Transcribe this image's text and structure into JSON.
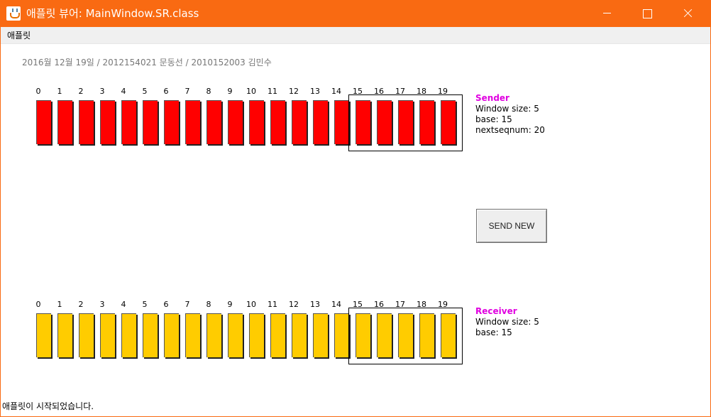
{
  "window": {
    "title": "애플릿 뷰어: MainWindow.SR.class"
  },
  "menu": {
    "items": [
      "애플릿"
    ]
  },
  "info_line": "2016월 12월 19일 / 2012154021 문동선 / 2010152003 김민수",
  "sender": {
    "title": "Sender",
    "window_size": "Window size: 5",
    "base": "base: 15",
    "nextseqnum": "nextseqnum: 20",
    "packets": [
      "0",
      "1",
      "2",
      "3",
      "4",
      "5",
      "6",
      "7",
      "8",
      "9",
      "10",
      "11",
      "12",
      "13",
      "14",
      "15",
      "16",
      "17",
      "18",
      "19"
    ],
    "state_color": "#ff0000"
  },
  "receiver": {
    "title": "Receiver",
    "window_size": "Window size: 5",
    "base": "base: 15",
    "packets": [
      "0",
      "1",
      "2",
      "3",
      "4",
      "5",
      "6",
      "7",
      "8",
      "9",
      "10",
      "11",
      "12",
      "13",
      "14",
      "15",
      "16",
      "17",
      "18",
      "19"
    ],
    "state_color": "#ffcc00"
  },
  "send_button": "SEND NEW",
  "status": "애플릿이 시작되었습니다.",
  "colors": {
    "titlebar": "#f96a12",
    "panel_title": "#e000e0"
  }
}
